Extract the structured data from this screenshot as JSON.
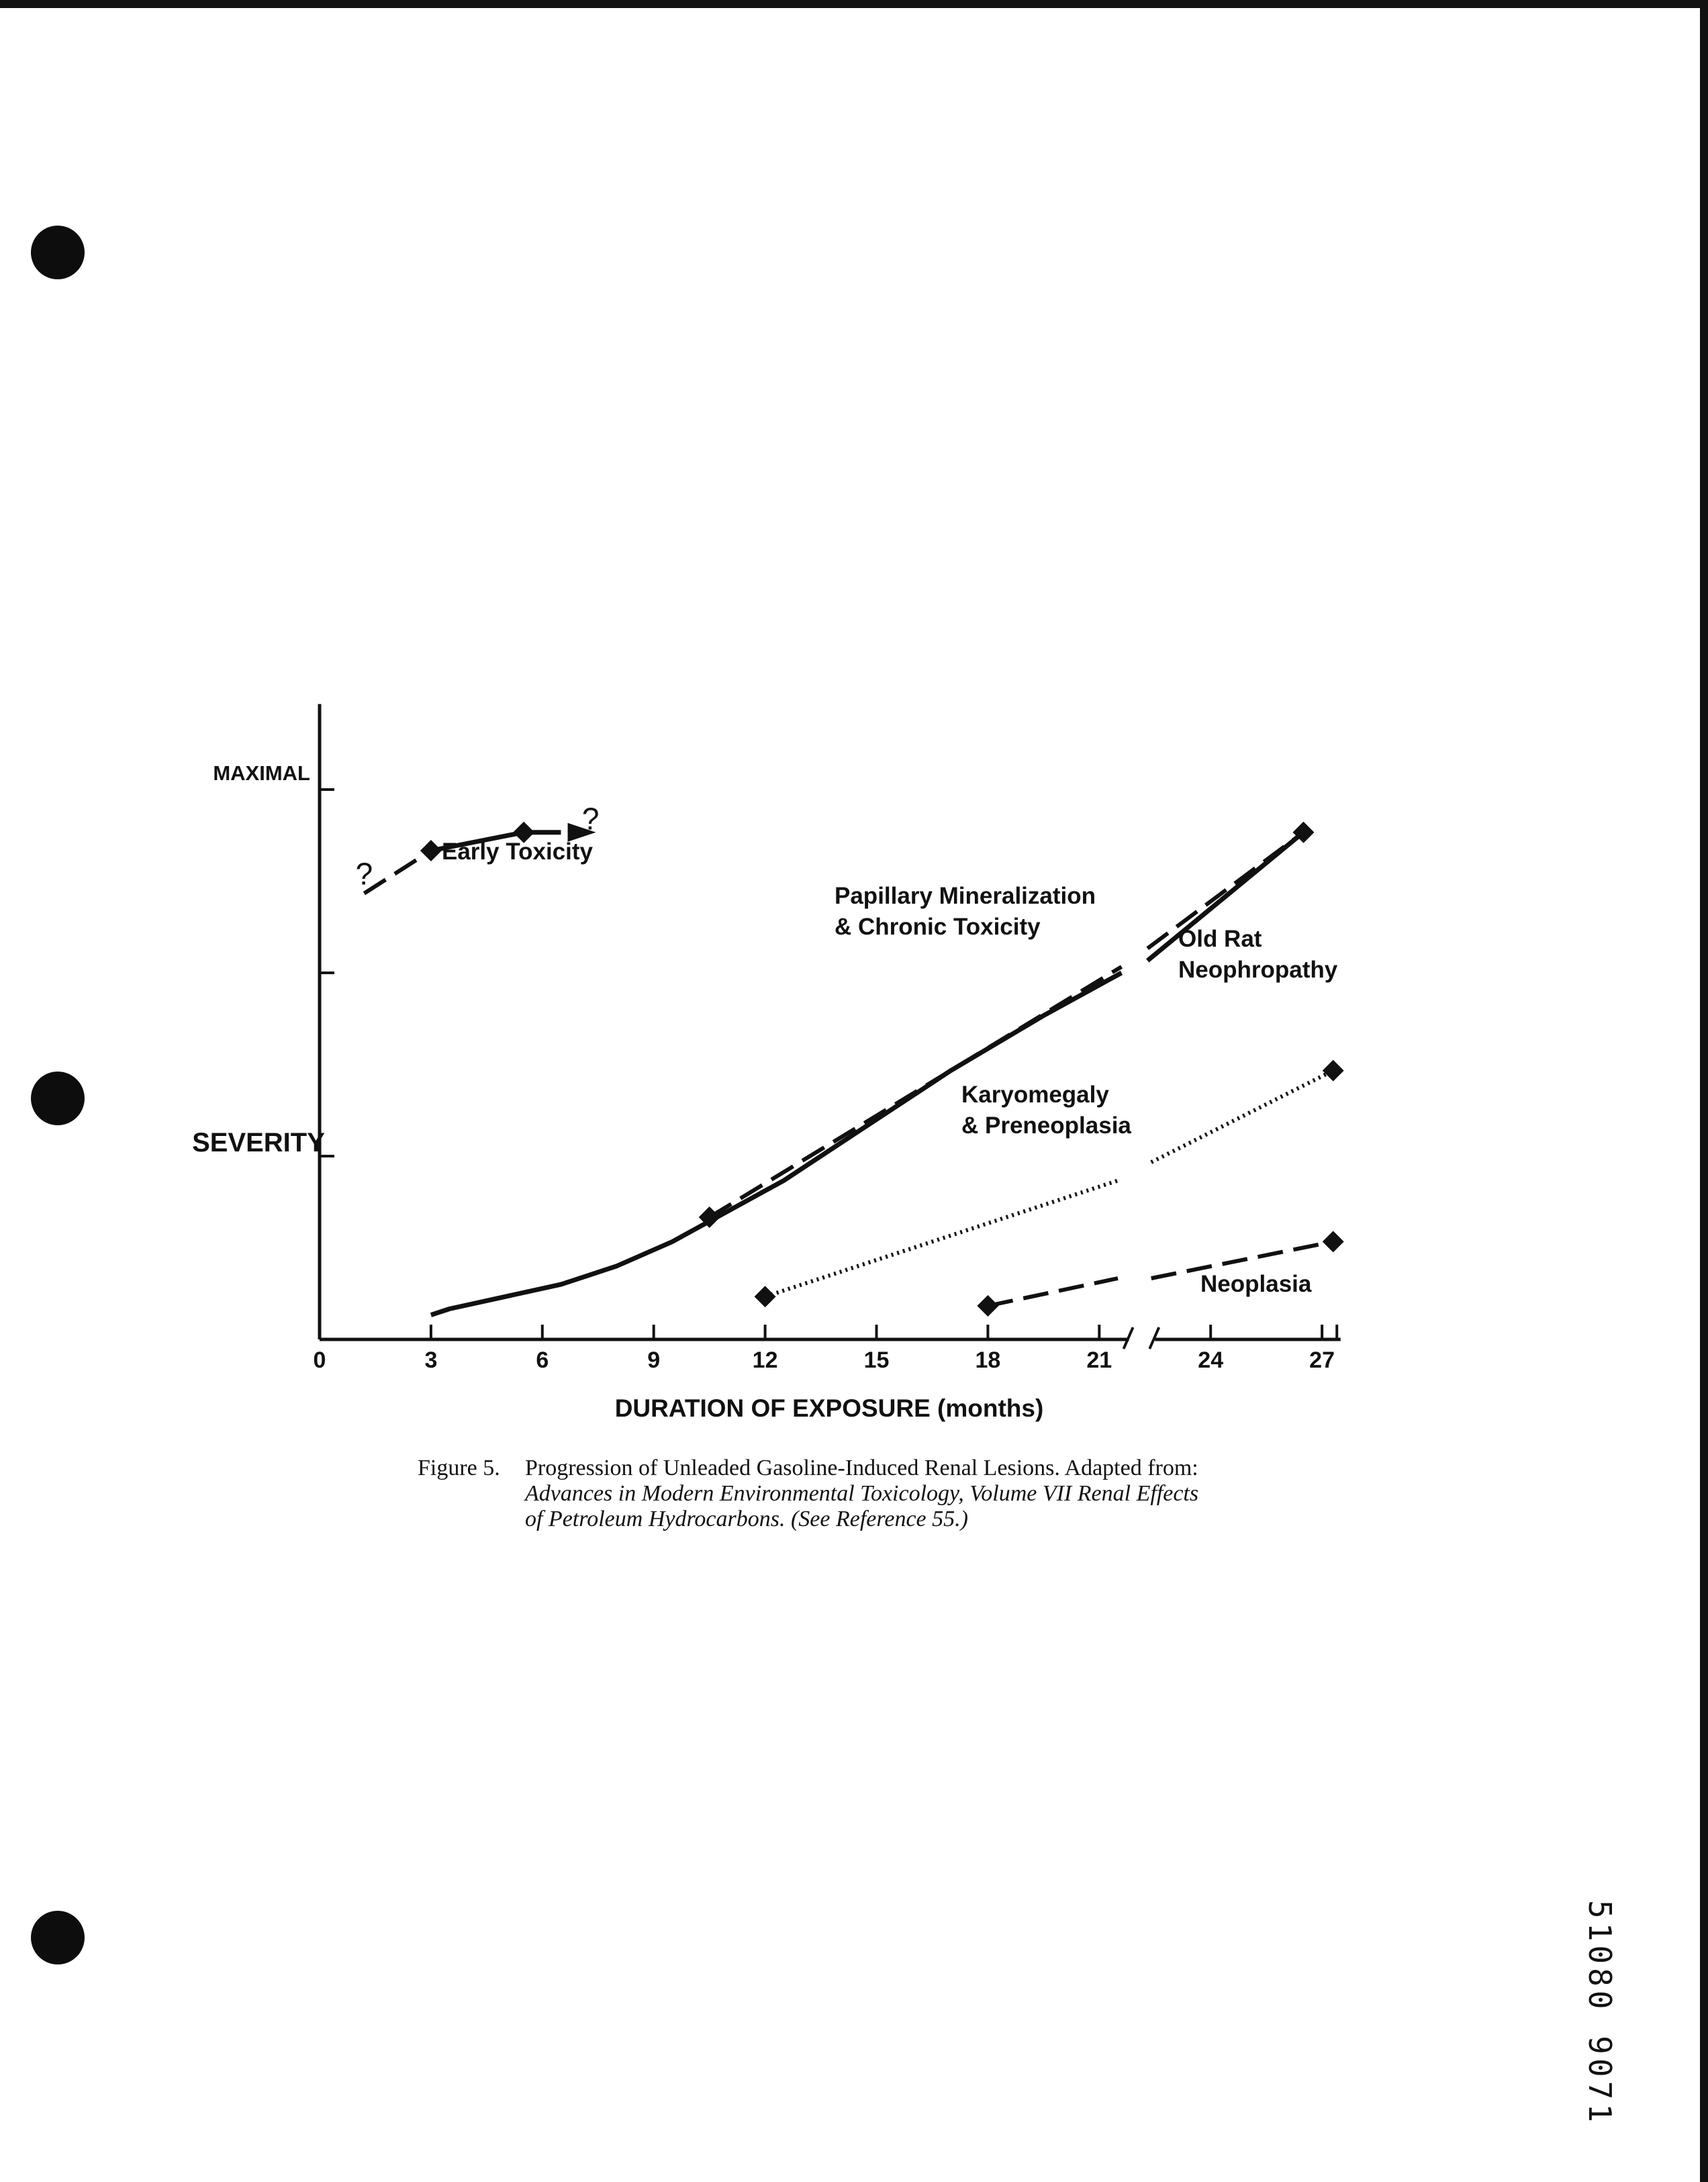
{
  "figure": {
    "caption_number": "Figure 5.",
    "caption_line1": "Progression of Unleaded Gasoline-Induced Renal Lesions. Adapted from:",
    "caption_line2": "Advances in Modern Environmental Toxicology, Volume VII Renal Effects",
    "caption_line3": "of Petroleum Hydrocarbons. (See Reference 55.)"
  },
  "stamp": "51080 9071",
  "chart_data": {
    "type": "line",
    "xlabel": "DURATION OF EXPOSURE (months)",
    "ylabel": "SEVERITY",
    "y_top_label": "MAXIMAL",
    "x_ticks": [
      "0",
      "3",
      "6",
      "9",
      "12",
      "15",
      "18",
      "21",
      "24",
      "27"
    ],
    "xlim": [
      0,
      27.5
    ],
    "ylim": [
      0,
      1
    ],
    "axis_break": [
      21.8,
      22.5
    ],
    "series": [
      {
        "name": "Early Toxicity",
        "label_lines": [
          "Early Toxicity"
        ],
        "segments": [
          {
            "style": "dashed",
            "points": [
              [
                1.2,
                0.73
              ],
              [
                3.0,
                0.8
              ]
            ]
          },
          {
            "style": "solid",
            "points": [
              [
                3.0,
                0.8
              ],
              [
                5.5,
                0.83
              ],
              [
                6.5,
                0.83
              ]
            ]
          }
        ],
        "markers": [
          [
            3.0,
            0.8
          ],
          [
            5.5,
            0.83
          ]
        ],
        "question_marks": [
          [
            1.2,
            0.76
          ],
          [
            7.3,
            0.85
          ]
        ],
        "arrow_end": [
          6.9,
          0.83
        ]
      },
      {
        "name": "Papillary Mineralization & Chronic Toxicity",
        "label_lines": [
          "Papillary Mineralization",
          "& Chronic Toxicity"
        ],
        "segments": [
          {
            "style": "dashed",
            "points": [
              [
                10.5,
                0.2
              ],
              [
                21.6,
                0.61
              ]
            ]
          },
          {
            "style": "dashed",
            "points": [
              [
                22.3,
                0.64
              ],
              [
                26.5,
                0.83
              ]
            ]
          }
        ],
        "markers": [
          [
            10.5,
            0.2
          ],
          [
            26.5,
            0.83
          ]
        ]
      },
      {
        "name": "Old Rat Neophropathy",
        "label_lines": [
          "Old Rat",
          "Neophropathy"
        ],
        "segments": [
          {
            "style": "solid",
            "points": [
              [
                3.0,
                0.04
              ],
              [
                3.5,
                0.05
              ],
              [
                5.0,
                0.07
              ],
              [
                6.5,
                0.09
              ],
              [
                8.0,
                0.12
              ],
              [
                9.5,
                0.16
              ],
              [
                11.0,
                0.21
              ],
              [
                12.5,
                0.26
              ],
              [
                14.5,
                0.34
              ],
              [
                17.0,
                0.44
              ],
              [
                19.5,
                0.53
              ],
              [
                21.6,
                0.6
              ]
            ]
          },
          {
            "style": "solid",
            "points": [
              [
                22.3,
                0.62
              ],
              [
                26.5,
                0.83
              ]
            ]
          }
        ],
        "markers": []
      },
      {
        "name": "Karyomegaly & Preneoplasia",
        "label_lines": [
          "Karyomegaly",
          "& Preneoplasia"
        ],
        "segments": [
          {
            "style": "dotted",
            "points": [
              [
                12.0,
                0.07
              ],
              [
                21.5,
                0.26
              ]
            ]
          },
          {
            "style": "dotted",
            "points": [
              [
                22.4,
                0.29
              ],
              [
                27.3,
                0.44
              ]
            ]
          }
        ],
        "markers": [
          [
            12.0,
            0.07
          ],
          [
            27.3,
            0.44
          ]
        ]
      },
      {
        "name": "Neoplasia",
        "label_lines": [
          "Neoplasia"
        ],
        "segments": [
          {
            "style": "dashed",
            "points": [
              [
                18.0,
                0.055
              ],
              [
                21.5,
                0.1
              ]
            ]
          },
          {
            "style": "dashed",
            "points": [
              [
                22.4,
                0.1
              ],
              [
                27.3,
                0.16
              ]
            ]
          }
        ],
        "markers": [
          [
            18.0,
            0.055
          ],
          [
            27.3,
            0.16
          ]
        ]
      }
    ]
  }
}
